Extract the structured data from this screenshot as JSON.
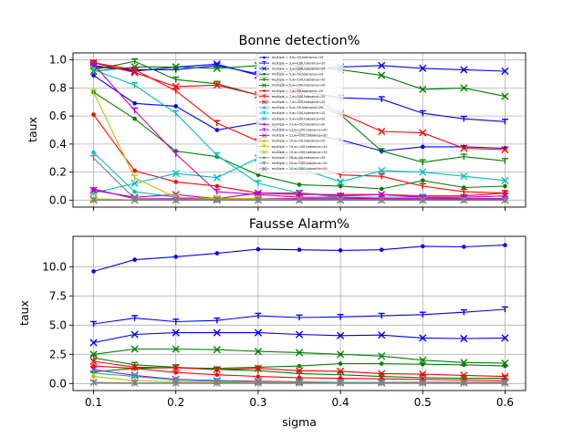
{
  "chart_data": [
    {
      "type": "line",
      "title": "Bonne detection%",
      "xlabel": "",
      "ylabel": "taux",
      "xlim": [
        0.075,
        0.625
      ],
      "ylim": [
        -0.05,
        1.05
      ],
      "yticks": [
        0.0,
        0.2,
        0.4,
        0.6,
        0.8,
        1.0
      ],
      "ytick_labels": [
        "0.0",
        "0.2",
        "0.4",
        "0.6",
        "0.8",
        "1.0"
      ],
      "grid": true,
      "legend_position": "top-center",
      "x": [
        0.1,
        0.15,
        0.2,
        0.25,
        0.3,
        0.35,
        0.4,
        0.45,
        0.5,
        0.55,
        0.6
      ],
      "series": [
        {
          "name": "multiple = 3,w=50,tolerance=20",
          "color": "#0000ff",
          "marker": "dot",
          "values": [
            0.89,
            0.69,
            0.67,
            0.5,
            0.55,
            0.48,
            0.43,
            0.35,
            0.38,
            0.38,
            0.37
          ]
        },
        {
          "name": "multiple = 3,w=100,tolerance=20",
          "color": "#0000ff",
          "marker": "tri",
          "values": [
            0.95,
            0.93,
            0.93,
            0.96,
            0.9,
            0.78,
            0.73,
            0.72,
            0.62,
            0.58,
            0.56
          ]
        },
        {
          "name": "multiple = 3,w=200,tolerance=20",
          "color": "#0000ff",
          "marker": "x",
          "values": [
            0.96,
            0.92,
            0.95,
            0.97,
            0.89,
            0.93,
            0.95,
            0.96,
            0.94,
            0.93,
            0.92
          ]
        },
        {
          "name": "multiple = 5,w=50,tolerance=20",
          "color": "#008000",
          "marker": "dot",
          "values": [
            0.77,
            0.58,
            0.35,
            0.31,
            0.18,
            0.11,
            0.1,
            0.08,
            0.14,
            0.09,
            0.1
          ]
        },
        {
          "name": "multiple = 5,w=100,tolerance=20",
          "color": "#008000",
          "marker": "tri",
          "values": [
            0.93,
            0.99,
            0.86,
            0.83,
            0.75,
            0.72,
            0.61,
            0.35,
            0.27,
            0.31,
            0.28
          ]
        },
        {
          "name": "multiple = 5,w=200,tolerance=20",
          "color": "#008000",
          "marker": "x",
          "values": [
            0.92,
            0.95,
            0.95,
            0.94,
            0.96,
            0.96,
            0.93,
            0.89,
            0.79,
            0.8,
            0.74
          ]
        },
        {
          "name": "multiple = 7,w=50,tolerance=20",
          "color": "#ff0000",
          "marker": "dot",
          "values": [
            0.61,
            0.21,
            0.13,
            0.1,
            0.05,
            0.04,
            0.04,
            0.04,
            0.03,
            0.03,
            0.05
          ]
        },
        {
          "name": "multiple = 7,w=100,tolerance=20",
          "color": "#ff0000",
          "marker": "tri",
          "values": [
            0.98,
            0.93,
            0.78,
            0.55,
            0.42,
            0.28,
            0.18,
            0.17,
            0.1,
            0.06,
            0.05
          ]
        },
        {
          "name": "multiple = 7,w=200,tolerance=20",
          "color": "#ff0000",
          "marker": "x",
          "values": [
            0.98,
            0.91,
            0.81,
            0.82,
            0.75,
            0.77,
            0.62,
            0.49,
            0.48,
            0.37,
            0.36
          ]
        },
        {
          "name": "multiple = 9,w=50,tolerance=20",
          "color": "#00bfbf",
          "marker": "dot",
          "values": [
            0.34,
            0.06,
            0.02,
            0.01,
            0.01,
            0.01,
            0.01,
            0.01,
            0.01,
            0.01,
            0.01
          ]
        },
        {
          "name": "multiple = 9,w=100,tolerance=20",
          "color": "#00bfbf",
          "marker": "tri",
          "values": [
            0.93,
            0.82,
            0.62,
            0.32,
            0.12,
            0.05,
            0.02,
            0.02,
            0.02,
            0.01,
            0.01
          ]
        },
        {
          "name": "multiple = 9,w=200,tolerance=20",
          "color": "#00bfbf",
          "marker": "x",
          "values": [
            0.05,
            0.12,
            0.19,
            0.16,
            0.3,
            0.23,
            0.13,
            0.21,
            0.2,
            0.17,
            0.14
          ]
        },
        {
          "name": "multiple = 11,w=50,tolerance=20",
          "color": "#bf00bf",
          "marker": "dot",
          "values": [
            0.08,
            0.01,
            0.01,
            0.01,
            0.01,
            0.01,
            0.01,
            0.01,
            0.01,
            0.01,
            0.01
          ]
        },
        {
          "name": "multiple = 11,w=100,tolerance=20",
          "color": "#bf00bf",
          "marker": "tri",
          "values": [
            0.97,
            0.64,
            0.33,
            0.06,
            0.04,
            0.02,
            0.02,
            0.01,
            0.01,
            0.01,
            0.01
          ]
        },
        {
          "name": "multiple = 11,w=200,tolerance=20",
          "color": "#bf00bf",
          "marker": "x",
          "values": [
            0.07,
            0.02,
            0.04,
            0.01,
            0.05,
            0.05,
            0.03,
            0.04,
            0.02,
            0.02,
            0.03
          ]
        },
        {
          "name": "multiple = 15,w=50,tolerance=20",
          "color": "#bfbf00",
          "marker": "dot",
          "values": [
            0.01,
            0.0,
            0.0,
            0.0,
            0.0,
            0.0,
            0.0,
            0.0,
            0.0,
            0.0,
            0.0
          ]
        },
        {
          "name": "multiple = 15,w=100,tolerance=20",
          "color": "#bfbf00",
          "marker": "tri",
          "values": [
            0.77,
            0.16,
            0.02,
            0.01,
            0.01,
            0.0,
            0.0,
            0.0,
            0.0,
            0.0,
            0.0
          ]
        },
        {
          "name": "multiple = 15,w=200,tolerance=20",
          "color": "#bfbf00",
          "marker": "x",
          "values": [
            0.01,
            0.0,
            0.0,
            0.0,
            0.0,
            0.0,
            0.0,
            0.0,
            0.0,
            0.0,
            0.0
          ]
        },
        {
          "name": "multiple = 20,w=50,tolerance=20",
          "color": "#808080",
          "marker": "dot",
          "values": [
            0.0,
            0.0,
            0.0,
            0.0,
            0.0,
            0.0,
            0.0,
            0.0,
            0.0,
            0.0,
            0.0
          ]
        },
        {
          "name": "multiple = 20,w=100,tolerance=20",
          "color": "#808080",
          "marker": "tri",
          "values": [
            0.3,
            0.01,
            0.0,
            0.0,
            0.0,
            0.0,
            0.0,
            0.0,
            0.0,
            0.0,
            0.0
          ]
        },
        {
          "name": "multiple = 20,w=200,tolerance=20",
          "color": "#808080",
          "marker": "x",
          "values": [
            0.0,
            0.0,
            0.0,
            0.0,
            0.0,
            0.0,
            0.0,
            0.0,
            0.0,
            0.0,
            0.0
          ]
        }
      ]
    },
    {
      "type": "line",
      "title": "Fausse Alarm%",
      "xlabel": "sigma",
      "ylabel": "taux",
      "xlim": [
        0.075,
        0.625
      ],
      "ylim": [
        -0.6,
        12.6
      ],
      "xticks": [
        0.1,
        0.2,
        0.3,
        0.4,
        0.5,
        0.6
      ],
      "xtick_labels": [
        "0.1",
        "0.2",
        "0.3",
        "0.4",
        "0.5",
        "0.6"
      ],
      "yticks": [
        0.0,
        2.5,
        5.0,
        7.5,
        10.0
      ],
      "ytick_labels": [
        "0.0",
        "2.5",
        "5.0",
        "7.5",
        "10.0"
      ],
      "grid": true,
      "x": [
        0.1,
        0.15,
        0.2,
        0.25,
        0.3,
        0.35,
        0.4,
        0.45,
        0.5,
        0.55,
        0.6
      ],
      "series": [
        {
          "color": "#0000ff",
          "marker": "dot",
          "values": [
            9.6,
            10.6,
            10.85,
            11.15,
            11.5,
            11.45,
            11.4,
            11.45,
            11.75,
            11.7,
            11.85
          ]
        },
        {
          "color": "#0000ff",
          "marker": "tri",
          "values": [
            5.1,
            5.6,
            5.3,
            5.4,
            5.8,
            5.65,
            5.7,
            5.8,
            5.9,
            6.1,
            6.35
          ]
        },
        {
          "color": "#0000ff",
          "marker": "x",
          "values": [
            3.5,
            4.2,
            4.35,
            4.35,
            4.35,
            4.2,
            4.1,
            4.15,
            3.9,
            3.85,
            3.9
          ]
        },
        {
          "color": "#008000",
          "marker": "dot",
          "values": [
            1.0,
            1.3,
            1.35,
            1.3,
            1.4,
            1.5,
            1.7,
            1.7,
            1.65,
            1.6,
            1.5
          ]
        },
        {
          "color": "#008000",
          "marker": "x",
          "values": [
            2.5,
            2.95,
            2.95,
            2.9,
            2.75,
            2.65,
            2.5,
            2.35,
            2.0,
            1.8,
            1.75
          ]
        },
        {
          "color": "#008000",
          "marker": "tri",
          "values": [
            2.2,
            1.6,
            1.4,
            1.2,
            1.1,
            0.85,
            0.75,
            0.6,
            0.5,
            0.45,
            0.45
          ]
        },
        {
          "color": "#ff0000",
          "marker": "x",
          "values": [
            1.9,
            1.4,
            1.35,
            1.2,
            1.3,
            1.1,
            1.05,
            0.85,
            0.8,
            0.7,
            0.6
          ]
        },
        {
          "color": "#ff0000",
          "marker": "dot",
          "values": [
            1.5,
            1.3,
            0.95,
            0.75,
            0.6,
            0.5,
            0.45,
            0.4,
            0.35,
            0.3,
            0.25
          ]
        },
        {
          "color": "#bf00bf",
          "marker": "x",
          "values": [
            1.2,
            0.7,
            0.35,
            0.25,
            0.2,
            0.15,
            0.1,
            0.1,
            0.1,
            0.1,
            0.1
          ]
        },
        {
          "color": "#00bfbf",
          "marker": "tri",
          "values": [
            0.9,
            0.6,
            0.3,
            0.2,
            0.15,
            0.1,
            0.1,
            0.1,
            0.05,
            0.05,
            0.05
          ]
        },
        {
          "color": "#bfbf00",
          "marker": "dot",
          "values": [
            0.6,
            0.25,
            0.15,
            0.1,
            0.1,
            0.1,
            0.05,
            0.05,
            0.05,
            0.05,
            0.05
          ]
        },
        {
          "color": "#808080",
          "marker": "x",
          "values": [
            0.1,
            0.05,
            0.05,
            0.05,
            0.05,
            0.05,
            0.05,
            0.05,
            0.05,
            0.05,
            0.05
          ]
        },
        {
          "color": "#808080",
          "marker": "tri",
          "values": [
            0.05,
            0.02,
            0.02,
            0.02,
            0.02,
            0.02,
            0.02,
            0.02,
            0.02,
            0.02,
            0.02
          ]
        }
      ]
    }
  ]
}
